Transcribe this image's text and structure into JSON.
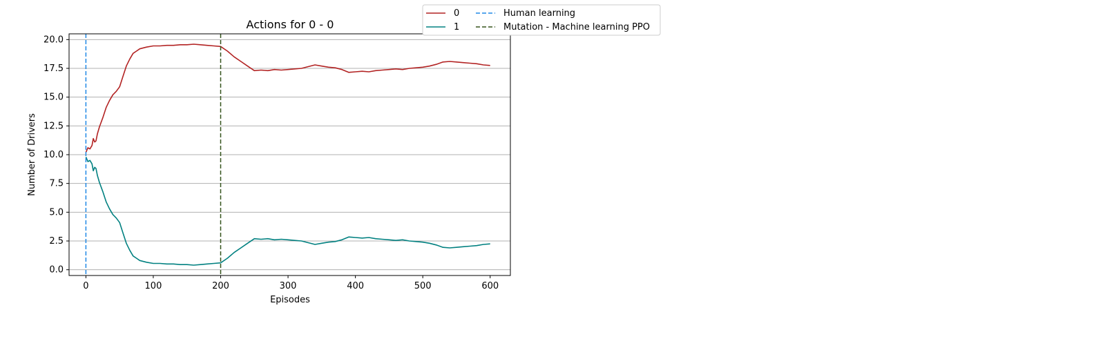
{
  "chart_data": {
    "type": "line",
    "title": "Actions for 0 - 0",
    "xlabel": "Episodes",
    "ylabel": "Number of Drivers",
    "xlim": [
      -25,
      630
    ],
    "ylim": [
      -0.5,
      20.5
    ],
    "xticks": [
      0,
      100,
      200,
      300,
      400,
      500,
      600
    ],
    "yticks": [
      0.0,
      2.5,
      5.0,
      7.5,
      10.0,
      12.5,
      15.0,
      17.5,
      20.0
    ],
    "ytick_labels": [
      "0.0",
      "2.5",
      "5.0",
      "7.5",
      "10.0",
      "12.5",
      "15.0",
      "17.5",
      "20.0"
    ],
    "grid": "horizontal",
    "legend": "upper-right, outside",
    "series": [
      {
        "name": "0",
        "color": "#b22222",
        "style": "solid",
        "x": [
          0,
          3,
          6,
          9,
          11,
          13,
          15,
          17,
          20,
          25,
          30,
          35,
          40,
          45,
          50,
          55,
          60,
          65,
          70,
          75,
          80,
          90,
          100,
          110,
          120,
          130,
          140,
          150,
          160,
          170,
          180,
          190,
          200,
          210,
          220,
          230,
          240,
          250,
          260,
          270,
          280,
          290,
          300,
          310,
          320,
          330,
          340,
          350,
          360,
          370,
          380,
          390,
          400,
          410,
          420,
          430,
          440,
          450,
          460,
          470,
          480,
          490,
          500,
          510,
          520,
          530,
          540,
          550,
          560,
          570,
          580,
          590,
          600
        ],
        "values": [
          10.2,
          10.6,
          10.5,
          10.8,
          11.4,
          11.1,
          11.2,
          11.8,
          12.4,
          13.2,
          14.1,
          14.7,
          15.2,
          15.5,
          15.9,
          16.8,
          17.7,
          18.3,
          18.8,
          19.0,
          19.2,
          19.35,
          19.45,
          19.45,
          19.5,
          19.5,
          19.55,
          19.55,
          19.6,
          19.55,
          19.5,
          19.45,
          19.4,
          19.0,
          18.5,
          18.1,
          17.7,
          17.3,
          17.35,
          17.3,
          17.4,
          17.35,
          17.4,
          17.45,
          17.5,
          17.65,
          17.8,
          17.7,
          17.6,
          17.55,
          17.4,
          17.15,
          17.2,
          17.25,
          17.2,
          17.3,
          17.35,
          17.4,
          17.45,
          17.4,
          17.5,
          17.55,
          17.6,
          17.7,
          17.85,
          18.05,
          18.1,
          18.05,
          18.0,
          17.95,
          17.9,
          17.8,
          17.75
        ]
      },
      {
        "name": "1",
        "color": "#008080",
        "style": "solid",
        "x": [
          0,
          3,
          6,
          9,
          11,
          13,
          15,
          17,
          20,
          25,
          30,
          35,
          40,
          45,
          50,
          55,
          60,
          65,
          70,
          75,
          80,
          90,
          100,
          110,
          120,
          130,
          140,
          150,
          160,
          170,
          180,
          190,
          200,
          210,
          220,
          230,
          240,
          250,
          260,
          270,
          280,
          290,
          300,
          310,
          320,
          330,
          340,
          350,
          360,
          370,
          380,
          390,
          400,
          410,
          420,
          430,
          440,
          450,
          460,
          470,
          480,
          490,
          500,
          510,
          520,
          530,
          540,
          550,
          560,
          570,
          580,
          590,
          600
        ],
        "values": [
          9.8,
          9.4,
          9.5,
          9.2,
          8.6,
          8.9,
          8.8,
          8.2,
          7.6,
          6.8,
          5.9,
          5.3,
          4.8,
          4.5,
          4.1,
          3.2,
          2.3,
          1.7,
          1.2,
          1.0,
          0.8,
          0.65,
          0.55,
          0.55,
          0.5,
          0.5,
          0.45,
          0.45,
          0.4,
          0.45,
          0.5,
          0.55,
          0.6,
          1.0,
          1.5,
          1.9,
          2.3,
          2.7,
          2.65,
          2.7,
          2.6,
          2.65,
          2.6,
          2.55,
          2.5,
          2.35,
          2.2,
          2.3,
          2.4,
          2.45,
          2.6,
          2.85,
          2.8,
          2.75,
          2.8,
          2.7,
          2.65,
          2.6,
          2.55,
          2.6,
          2.5,
          2.45,
          2.4,
          2.3,
          2.15,
          1.95,
          1.9,
          1.95,
          2.0,
          2.05,
          2.1,
          2.2,
          2.25
        ]
      }
    ],
    "vlines": [
      {
        "name": "Human learning",
        "x": 0,
        "color": "#1e88e5",
        "style": "dashed"
      },
      {
        "name": "Mutation - Machine learning PPO",
        "x": 200,
        "color": "#33521a",
        "style": "dashed"
      }
    ]
  }
}
